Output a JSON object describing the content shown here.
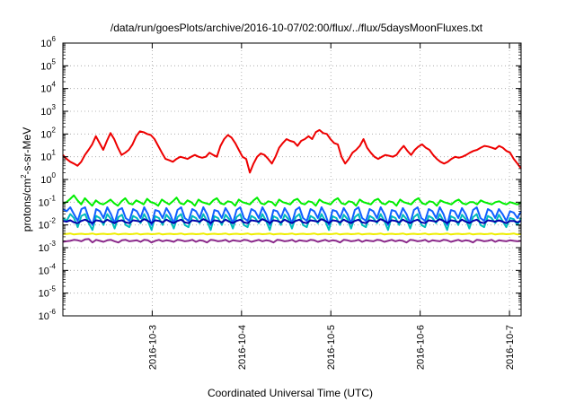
{
  "chart_data": {
    "type": "line",
    "title": "/data/run/goesPlots/archive/2016-10-07/02:00/flux/../flux/5daysMoonFluxes.txt",
    "xlabel": "Coordinated Universal Time (UTC)",
    "ylabel": "protons/cm2-s-sr-MeV",
    "ylabel_parts": [
      "protons/cm",
      "2",
      "-s-sr-MeV"
    ],
    "y_scale": "log",
    "ylim_exponents": [
      -6,
      6
    ],
    "y_tick_exponents": [
      -6,
      -5,
      -4,
      -3,
      -2,
      -1,
      0,
      1,
      2,
      3,
      4,
      5,
      6
    ],
    "x_range_days": [
      "2016-10-02",
      "2016-10-07"
    ],
    "xlim_day_offsets": [
      0.0,
      5.13
    ],
    "x_tick_labels": [
      "2016-10-3",
      "2016-10-4",
      "2016-10-5",
      "2016-10-6",
      "2016-10-7"
    ],
    "x_tick_day_offsets": [
      1,
      2,
      3,
      4,
      5
    ],
    "grid": true,
    "legend": "none",
    "series": [
      {
        "color": "#ee0000",
        "values": [
          12,
          8,
          6,
          5,
          4,
          6,
          12,
          20,
          35,
          80,
          40,
          20,
          50,
          110,
          60,
          25,
          12,
          15,
          20,
          35,
          80,
          130,
          120,
          100,
          90,
          60,
          30,
          15,
          8,
          7,
          6,
          8,
          10,
          9,
          8,
          10,
          12,
          10,
          9,
          10,
          15,
          12,
          10,
          30,
          60,
          90,
          70,
          40,
          20,
          10,
          8,
          2,
          5,
          10,
          14,
          12,
          8,
          5,
          10,
          25,
          40,
          60,
          50,
          45,
          30,
          50,
          60,
          80,
          60,
          120,
          150,
          110,
          100,
          60,
          40,
          35,
          10,
          5,
          8,
          15,
          20,
          30,
          60,
          25,
          15,
          10,
          8,
          10,
          12,
          11,
          10,
          12,
          20,
          30,
          18,
          12,
          20,
          28,
          35,
          25,
          20,
          12,
          8,
          6,
          5,
          6,
          8,
          10,
          9,
          10,
          12,
          15,
          18,
          20,
          25,
          30,
          28,
          25,
          22,
          30,
          25,
          18,
          15,
          8,
          5,
          3
        ]
      },
      {
        "color": "#00ee00",
        "values": [
          0.09,
          0.1,
          0.14,
          0.2,
          0.12,
          0.08,
          0.15,
          0.1,
          0.07,
          0.12,
          0.09,
          0.08,
          0.1,
          0.13,
          0.09,
          0.07,
          0.11,
          0.15,
          0.09,
          0.08,
          0.12,
          0.1,
          0.08,
          0.14,
          0.1,
          0.09,
          0.07,
          0.13,
          0.1,
          0.08,
          0.11,
          0.16,
          0.09,
          0.08,
          0.12,
          0.1,
          0.07,
          0.13,
          0.1,
          0.09,
          0.08,
          0.12,
          0.15,
          0.09,
          0.08,
          0.11,
          0.1,
          0.07,
          0.13,
          0.1,
          0.09,
          0.08,
          0.12,
          0.16,
          0.09,
          0.08,
          0.11,
          0.1,
          0.07,
          0.13,
          0.1,
          0.09,
          0.08,
          0.12,
          0.14,
          0.09,
          0.08,
          0.11,
          0.1,
          0.07,
          0.13,
          0.1,
          0.09,
          0.08,
          0.12,
          0.15,
          0.09,
          0.08,
          0.11,
          0.1,
          0.07,
          0.13,
          0.1,
          0.09,
          0.08,
          0.12,
          0.14,
          0.09,
          0.08,
          0.11,
          0.1,
          0.07,
          0.13,
          0.1,
          0.09,
          0.08,
          0.12,
          0.15,
          0.09,
          0.08,
          0.11,
          0.1,
          0.07,
          0.12,
          0.1,
          0.09,
          0.08,
          0.11,
          0.13,
          0.09,
          0.08,
          0.1,
          0.1,
          0.08,
          0.12,
          0.1,
          0.09,
          0.08,
          0.1,
          0.11,
          0.09,
          0.08,
          0.1,
          0.09,
          0.08,
          0.1
        ]
      },
      {
        "color": "#00bbbb",
        "values": [
          0.02,
          0.015,
          0.03,
          0.02,
          0.008,
          0.025,
          0.03,
          0.012,
          0.006,
          0.025,
          0.02,
          0.01,
          0.03,
          0.018,
          0.007,
          0.022,
          0.028,
          0.01,
          0.008,
          0.025,
          0.02,
          0.012,
          0.03,
          0.015,
          0.006,
          0.024,
          0.02,
          0.01,
          0.028,
          0.018,
          0.007,
          0.022,
          0.03,
          0.01,
          0.008,
          0.025,
          0.02,
          0.012,
          0.03,
          0.015,
          0.006,
          0.024,
          0.02,
          0.01,
          0.028,
          0.018,
          0.007,
          0.022,
          0.03,
          0.01,
          0.008,
          0.025,
          0.02,
          0.012,
          0.03,
          0.015,
          0.006,
          0.024,
          0.02,
          0.01,
          0.028,
          0.018,
          0.007,
          0.022,
          0.03,
          0.01,
          0.008,
          0.025,
          0.02,
          0.012,
          0.03,
          0.015,
          0.006,
          0.024,
          0.02,
          0.01,
          0.028,
          0.018,
          0.007,
          0.022,
          0.03,
          0.01,
          0.008,
          0.025,
          0.02,
          0.012,
          0.03,
          0.015,
          0.006,
          0.024,
          0.02,
          0.01,
          0.028,
          0.018,
          0.007,
          0.022,
          0.03,
          0.01,
          0.008,
          0.025,
          0.02,
          0.012,
          0.03,
          0.015,
          0.006,
          0.024,
          0.02,
          0.01,
          0.028,
          0.018,
          0.007,
          0.022,
          0.03,
          0.01,
          0.008,
          0.025,
          0.02,
          0.012,
          0.028,
          0.015,
          0.008,
          0.02,
          0.018,
          0.01,
          0.02
        ]
      },
      {
        "color": "#1060ff",
        "values": [
          0.05,
          0.04,
          0.06,
          0.03,
          0.015,
          0.05,
          0.06,
          0.02,
          0.01,
          0.05,
          0.04,
          0.02,
          0.06,
          0.03,
          0.012,
          0.045,
          0.055,
          0.02,
          0.015,
          0.05,
          0.04,
          0.02,
          0.06,
          0.03,
          0.01,
          0.045,
          0.04,
          0.02,
          0.055,
          0.03,
          0.012,
          0.045,
          0.06,
          0.02,
          0.015,
          0.05,
          0.04,
          0.02,
          0.06,
          0.03,
          0.01,
          0.045,
          0.04,
          0.02,
          0.055,
          0.03,
          0.012,
          0.045,
          0.06,
          0.02,
          0.015,
          0.05,
          0.04,
          0.02,
          0.06,
          0.03,
          0.01,
          0.045,
          0.04,
          0.02,
          0.055,
          0.03,
          0.012,
          0.045,
          0.06,
          0.02,
          0.015,
          0.05,
          0.04,
          0.02,
          0.06,
          0.03,
          0.01,
          0.045,
          0.04,
          0.02,
          0.055,
          0.03,
          0.012,
          0.045,
          0.06,
          0.02,
          0.015,
          0.05,
          0.04,
          0.02,
          0.06,
          0.03,
          0.01,
          0.045,
          0.04,
          0.02,
          0.055,
          0.03,
          0.012,
          0.045,
          0.06,
          0.02,
          0.015,
          0.05,
          0.04,
          0.02,
          0.06,
          0.03,
          0.01,
          0.045,
          0.04,
          0.02,
          0.055,
          0.03,
          0.012,
          0.045,
          0.06,
          0.02,
          0.015,
          0.05,
          0.04,
          0.02,
          0.05,
          0.03,
          0.015,
          0.04,
          0.035,
          0.02,
          0.04
        ]
      },
      {
        "color": "#0000aa",
        "values": [
          0.015,
          0.014,
          0.016,
          0.013,
          0.012,
          0.015,
          0.017,
          0.014,
          0.012,
          0.016,
          0.015,
          0.013,
          0.017,
          0.014,
          0.012,
          0.015,
          0.016,
          0.013,
          0.012,
          0.016,
          0.015,
          0.014,
          0.018,
          0.015,
          0.012,
          0.016,
          0.015,
          0.013,
          0.017,
          0.014,
          0.012,
          0.015,
          0.017,
          0.013,
          0.012,
          0.016,
          0.015,
          0.014,
          0.018,
          0.015,
          0.012,
          0.016,
          0.015,
          0.013,
          0.017,
          0.014,
          0.012,
          0.015,
          0.017,
          0.013,
          0.012,
          0.016,
          0.015,
          0.014,
          0.018,
          0.015,
          0.012,
          0.016,
          0.015,
          0.013,
          0.017,
          0.014,
          0.012,
          0.015,
          0.017,
          0.013,
          0.012,
          0.016,
          0.015,
          0.014,
          0.018,
          0.015,
          0.012,
          0.016,
          0.015,
          0.013,
          0.017,
          0.014,
          0.012,
          0.015,
          0.017,
          0.013,
          0.012,
          0.016,
          0.015,
          0.014,
          0.018,
          0.015,
          0.012,
          0.016,
          0.015,
          0.013,
          0.017,
          0.014,
          0.012,
          0.015,
          0.017,
          0.013,
          0.012,
          0.016,
          0.015,
          0.014,
          0.018,
          0.015,
          0.012,
          0.016,
          0.015,
          0.013,
          0.017,
          0.014,
          0.012,
          0.015,
          0.017,
          0.013,
          0.012,
          0.016,
          0.015,
          0.014,
          0.016,
          0.014,
          0.012,
          0.015,
          0.015,
          0.013,
          0.015
        ]
      },
      {
        "color": "#eeee00",
        "values": [
          0.004,
          0.004,
          0.0042,
          0.0038,
          0.004,
          0.0041,
          0.0039,
          0.004,
          0.0042,
          0.0038,
          0.004,
          0.0041,
          0.0039,
          0.004,
          0.0042,
          0.0038,
          0.004,
          0.0041,
          0.0039,
          0.004,
          0.0042,
          0.0038,
          0.004,
          0.0041,
          0.0039,
          0.004,
          0.0042,
          0.0038,
          0.004,
          0.0041,
          0.0039,
          0.004,
          0.0042,
          0.0038,
          0.004,
          0.0041,
          0.0039,
          0.004,
          0.0042,
          0.0038,
          0.004,
          0.0041,
          0.0039,
          0.004,
          0.0042,
          0.0038,
          0.004,
          0.0041,
          0.0039,
          0.004,
          0.0042,
          0.0038,
          0.004,
          0.0041,
          0.0039,
          0.004,
          0.0042,
          0.0038,
          0.004,
          0.0041,
          0.0039,
          0.004,
          0.0042,
          0.0038,
          0.004,
          0.0041,
          0.0039,
          0.004,
          0.0042,
          0.0038,
          0.004,
          0.0041,
          0.0039,
          0.004,
          0.0042,
          0.0038,
          0.004,
          0.0041,
          0.0039,
          0.004,
          0.0042,
          0.0038,
          0.004,
          0.0041,
          0.0039,
          0.004,
          0.0042,
          0.0038,
          0.004,
          0.0041,
          0.0039,
          0.004,
          0.0042,
          0.0038,
          0.004,
          0.0041,
          0.0039,
          0.004,
          0.0042,
          0.0038,
          0.004,
          0.0041,
          0.0039,
          0.004,
          0.0042,
          0.0038,
          0.004,
          0.0041,
          0.0039,
          0.004,
          0.0042,
          0.0038,
          0.004,
          0.0041,
          0.0039,
          0.004,
          0.0042,
          0.0038,
          0.004,
          0.0041,
          0.0039,
          0.004,
          0.0042,
          0.0038,
          0.004
        ]
      },
      {
        "color": "#8b2a8b",
        "values": [
          0.0018,
          0.0019,
          0.002,
          0.0022,
          0.0021,
          0.0019,
          0.0023,
          0.0024,
          0.0017,
          0.0022,
          0.002,
          0.0018,
          0.0021,
          0.0022,
          0.0019,
          0.0017,
          0.0021,
          0.0022,
          0.0019,
          0.002,
          0.0021,
          0.0018,
          0.0022,
          0.0021,
          0.0017,
          0.002,
          0.0022,
          0.0019,
          0.0021,
          0.002,
          0.0018,
          0.0022,
          0.0021,
          0.0019,
          0.002,
          0.0022,
          0.0018,
          0.0021,
          0.002,
          0.0017,
          0.0022,
          0.0021,
          0.0019,
          0.002,
          0.0022,
          0.0018,
          0.0021,
          0.002,
          0.0019,
          0.0022,
          0.0021,
          0.0018,
          0.002,
          0.0022,
          0.0019,
          0.0021,
          0.002,
          0.0017,
          0.0022,
          0.0021,
          0.0019,
          0.002,
          0.0022,
          0.0018,
          0.0021,
          0.002,
          0.0019,
          0.0022,
          0.0021,
          0.0018,
          0.002,
          0.0022,
          0.0019,
          0.0021,
          0.002,
          0.0017,
          0.0022,
          0.0021,
          0.0019,
          0.002,
          0.0022,
          0.0018,
          0.0021,
          0.002,
          0.0019,
          0.0022,
          0.0021,
          0.0018,
          0.002,
          0.0022,
          0.0019,
          0.0021,
          0.002,
          0.0017,
          0.0022,
          0.0021,
          0.0019,
          0.002,
          0.0022,
          0.0018,
          0.0021,
          0.002,
          0.0019,
          0.0022,
          0.0021,
          0.0018,
          0.002,
          0.0022,
          0.0019,
          0.0021,
          0.002,
          0.0017,
          0.0022,
          0.0021,
          0.0019,
          0.002,
          0.0022,
          0.0018,
          0.0021,
          0.002,
          0.0019,
          0.0021,
          0.002,
          0.0019,
          0.002
        ]
      }
    ]
  }
}
